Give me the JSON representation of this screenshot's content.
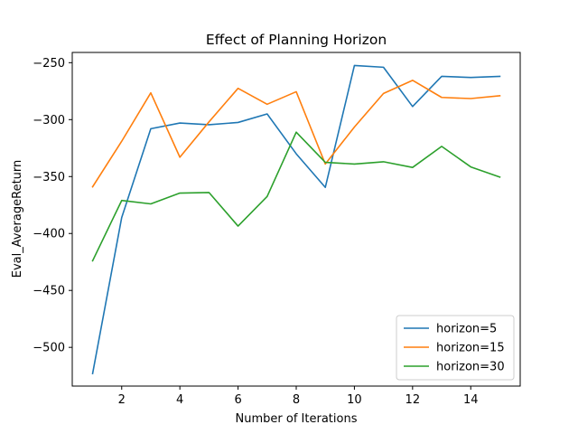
{
  "chart_data": {
    "type": "line",
    "title": "Effect of Planning Horizon",
    "xlabel": "Number of Iterations",
    "ylabel": "Eval_AverageReturn",
    "x": [
      1,
      2,
      3,
      4,
      5,
      6,
      7,
      8,
      9,
      10,
      11,
      12,
      13,
      14,
      15
    ],
    "xlim": [
      0.3,
      15.7
    ],
    "ylim": [
      -534,
      -241
    ],
    "xticks": [
      2,
      4,
      6,
      8,
      10,
      12,
      14
    ],
    "yticks": [
      -500,
      -450,
      -400,
      -350,
      -300,
      -250
    ],
    "xtick_labels": [
      "2",
      "4",
      "6",
      "8",
      "10",
      "12",
      "14"
    ],
    "ytick_labels": [
      "−500",
      "−450",
      "−400",
      "−350",
      "−300",
      "−250"
    ],
    "grid": false,
    "legend_position": "lower-right",
    "series": [
      {
        "name": "horizon=5",
        "color": "#1f77b4",
        "values": [
          -523,
          -386,
          -308,
          -303,
          -304.5,
          -302.5,
          -295,
          -330,
          -359.5,
          -252.5,
          -254,
          -288.5,
          -262,
          -263,
          -262
        ]
      },
      {
        "name": "horizon=15",
        "color": "#ff7f0e",
        "values": [
          -359,
          -319,
          -276.5,
          -333,
          -302,
          -272.5,
          -286.5,
          -275.5,
          -339,
          -306.5,
          -277,
          -265.5,
          -280.5,
          -281.5,
          -279
        ]
      },
      {
        "name": "horizon=30",
        "color": "#2ca02c",
        "values": [
          -424,
          -371,
          -374,
          -364.5,
          -364,
          -393.5,
          -367.5,
          -311,
          -337.5,
          -339,
          -337,
          -342,
          -323.5,
          -341.5,
          -350.5
        ]
      }
    ]
  }
}
